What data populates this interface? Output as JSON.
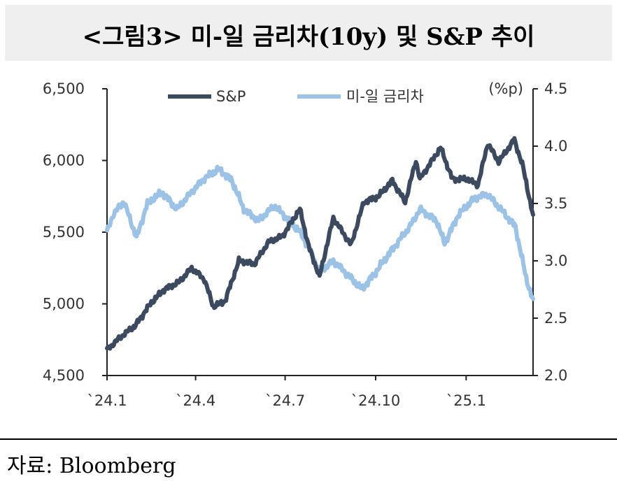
{
  "title": "<그림3> 미-일 금리차(10y) 및 S&P 추이",
  "source": "자료: Bloomberg",
  "chart_data": {
    "type": "line",
    "title": "<그림3> 미-일 금리차(10y) 및 S&P 추이",
    "x_ticks": [
      "`24.1",
      "`24.4",
      "`24.7",
      "`24.10",
      "`25.1"
    ],
    "x_range": [
      "2024-01-02",
      "2025-03-10"
    ],
    "y_left": {
      "ticks": [
        "4,500",
        "5,000",
        "5,500",
        "6,000",
        "6,500"
      ],
      "ylim": [
        4500,
        6500
      ]
    },
    "y_right": {
      "unit": "(%p)",
      "ticks": [
        "2.0",
        "2.5",
        "3.0",
        "3.5",
        "4.0",
        "4.5"
      ],
      "ylim": [
        2.0,
        4.5
      ]
    },
    "legend_position": "top",
    "grid": false,
    "series": [
      {
        "name": "S&P",
        "axis": "left",
        "color": "#3c4a5f",
        "points": [
          [
            "2024-01-02",
            4680
          ],
          [
            "2024-01-16",
            4770
          ],
          [
            "2024-01-31",
            4850
          ],
          [
            "2024-02-15",
            5000
          ],
          [
            "2024-02-29",
            5100
          ],
          [
            "2024-03-15",
            5150
          ],
          [
            "2024-03-28",
            5250
          ],
          [
            "2024-04-10",
            5170
          ],
          [
            "2024-04-19",
            4980
          ],
          [
            "2024-05-01",
            5020
          ],
          [
            "2024-05-15",
            5300
          ],
          [
            "2024-05-31",
            5280
          ],
          [
            "2024-06-14",
            5430
          ],
          [
            "2024-06-28",
            5470
          ],
          [
            "2024-07-16",
            5660
          ],
          [
            "2024-07-25",
            5400
          ],
          [
            "2024-08-05",
            5190
          ],
          [
            "2024-08-19",
            5600
          ],
          [
            "2024-09-06",
            5410
          ],
          [
            "2024-09-19",
            5710
          ],
          [
            "2024-10-04",
            5750
          ],
          [
            "2024-10-18",
            5860
          ],
          [
            "2024-10-31",
            5710
          ],
          [
            "2024-11-11",
            6000
          ],
          [
            "2024-11-15",
            5870
          ],
          [
            "2024-12-06",
            6090
          ],
          [
            "2024-12-18",
            5870
          ],
          [
            "2025-01-02",
            5870
          ],
          [
            "2025-01-13",
            5830
          ],
          [
            "2025-01-23",
            6120
          ],
          [
            "2025-02-03",
            5990
          ],
          [
            "2025-02-19",
            6145
          ],
          [
            "2025-02-28",
            5950
          ],
          [
            "2025-03-10",
            5610
          ]
        ]
      },
      {
        "name": "미-일 금리차",
        "axis": "right",
        "color": "#9cc3e6",
        "points": [
          [
            "2024-01-02",
            3.25
          ],
          [
            "2024-01-08",
            3.4
          ],
          [
            "2024-01-19",
            3.52
          ],
          [
            "2024-02-01",
            3.2
          ],
          [
            "2024-02-12",
            3.5
          ],
          [
            "2024-02-27",
            3.6
          ],
          [
            "2024-03-13",
            3.45
          ],
          [
            "2024-03-28",
            3.6
          ],
          [
            "2024-04-10",
            3.72
          ],
          [
            "2024-04-25",
            3.8
          ],
          [
            "2024-05-08",
            3.7
          ],
          [
            "2024-05-20",
            3.45
          ],
          [
            "2024-06-04",
            3.35
          ],
          [
            "2024-06-20",
            3.48
          ],
          [
            "2024-07-02",
            3.38
          ],
          [
            "2024-07-16",
            3.25
          ],
          [
            "2024-07-26",
            3.1
          ],
          [
            "2024-08-05",
            2.9
          ],
          [
            "2024-08-19",
            3.0
          ],
          [
            "2024-09-06",
            2.85
          ],
          [
            "2024-09-17",
            2.75
          ],
          [
            "2024-10-01",
            2.9
          ],
          [
            "2024-10-18",
            3.1
          ],
          [
            "2024-11-05",
            3.3
          ],
          [
            "2024-11-15",
            3.45
          ],
          [
            "2024-12-02",
            3.35
          ],
          [
            "2024-12-10",
            3.15
          ],
          [
            "2024-12-24",
            3.4
          ],
          [
            "2025-01-10",
            3.55
          ],
          [
            "2025-01-23",
            3.58
          ],
          [
            "2025-02-05",
            3.45
          ],
          [
            "2025-02-20",
            3.3
          ],
          [
            "2025-03-03",
            2.85
          ],
          [
            "2025-03-10",
            2.65
          ]
        ]
      }
    ]
  }
}
